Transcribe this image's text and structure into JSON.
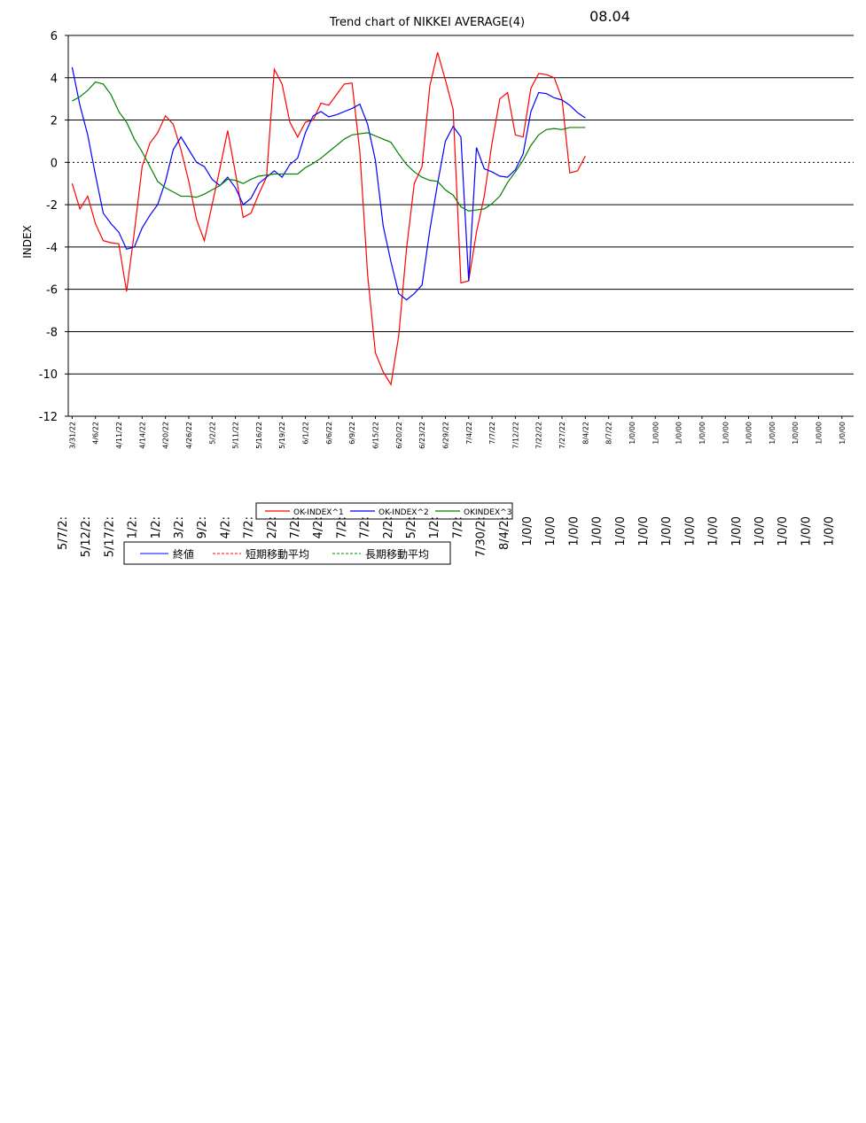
{
  "chart_data": {
    "type": "line",
    "title": "Trend chart of NIKKEI AVERAGE(4)",
    "annotation": "08.04",
    "y_label": "INDEX",
    "categories": [
      "3/31/22",
      null,
      null,
      "4/6/22",
      null,
      null,
      "4/11/22",
      null,
      null,
      "4/14/22",
      null,
      null,
      "4/20/22",
      null,
      null,
      "4/26/22",
      null,
      null,
      "5/2/22",
      null,
      null,
      "5/11/22",
      null,
      null,
      "5/16/22",
      null,
      null,
      "5/19/22",
      null,
      null,
      "6/1/22",
      null,
      null,
      "6/6/22",
      null,
      null,
      "6/9/22",
      null,
      null,
      "6/15/22",
      null,
      null,
      "6/20/22",
      null,
      null,
      "6/23/22",
      null,
      null,
      "6/29/22",
      null,
      null,
      "7/4/22",
      null,
      null,
      "7/7/22",
      null,
      null,
      "7/12/22",
      null,
      null,
      "7/22/22",
      null,
      null,
      "7/27/22",
      null,
      null,
      "8/4/22",
      null,
      null,
      "8/7/22",
      null,
      null,
      "1/0/00",
      null,
      null,
      "1/0/00",
      null,
      null,
      "1/0/00",
      null,
      null,
      "1/0/00",
      null,
      null,
      "1/0/00",
      null,
      null,
      "1/0/00",
      null,
      null,
      "1/0/00",
      null,
      null,
      "1/0/00",
      null,
      null,
      "1/0/00",
      null,
      null,
      "1/0/00",
      null
    ],
    "series": [
      {
        "name": "OK-INDEX^1",
        "color": "#ff0000",
        "values": [
          -1,
          -2.2,
          -1.6,
          -2.9,
          -3.7,
          -3.8,
          -3.85,
          -6.1,
          -3.3,
          -0.2,
          0.9,
          1.4,
          2.2,
          1.8,
          0.6,
          -0.9,
          -2.7,
          -3.7,
          -2,
          -0.3,
          1.5,
          -0.5,
          -2.6,
          -2.4,
          -1.5,
          -0.7,
          4.4,
          3.7,
          1.9,
          1.2,
          1.9,
          2,
          2.8,
          2.7,
          3.2,
          3.7,
          3.75,
          0.5,
          -5.3,
          -9,
          -9.9,
          -10.5,
          -8.2,
          -4.1,
          -1,
          -0.2,
          3.6,
          5.2,
          3.9,
          2.5,
          -5.7,
          -5.6,
          -3.3,
          -1.6,
          0.9,
          3,
          3.3,
          1.3,
          1.2,
          3.5,
          4.2,
          4.15,
          4,
          3,
          -0.5,
          -0.4,
          0.3,
          null,
          null,
          null,
          null,
          null,
          null,
          null,
          null,
          null,
          null,
          null,
          null,
          null,
          null,
          null,
          null,
          null,
          null,
          null,
          null,
          null,
          null,
          null,
          null,
          null,
          null,
          null,
          null,
          null,
          null,
          null,
          null,
          null,
          null
        ]
      },
      {
        "name": "OK-INDEX^2",
        "color": "#0000ff",
        "values": [
          4.5,
          2.7,
          1.3,
          -0.6,
          -2.4,
          -2.9,
          -3.3,
          -4.1,
          -4,
          -3.1,
          -2.5,
          -2,
          -0.9,
          0.6,
          1.2,
          0.6,
          0,
          -0.2,
          -0.8,
          -1.1,
          -0.7,
          -1.2,
          -2,
          -1.7,
          -1,
          -0.7,
          -0.4,
          -0.7,
          -0.1,
          0.2,
          1.4,
          2.2,
          2.4,
          2.15,
          2.25,
          2.4,
          2.55,
          2.75,
          1.8,
          0.1,
          -3,
          -4.7,
          -6.2,
          -6.5,
          -6.2,
          -5.8,
          -3.2,
          -1,
          1,
          1.7,
          1.2,
          -5.6,
          0.7,
          -0.3,
          -0.45,
          -0.65,
          -0.7,
          -0.35,
          0.4,
          2.4,
          3.3,
          3.25,
          3.05,
          2.95,
          2.7,
          2.35,
          2.1,
          null,
          null,
          null,
          null,
          null,
          null,
          null,
          null,
          null,
          null,
          null,
          null,
          null,
          null,
          null,
          null,
          null,
          null,
          null,
          null,
          null,
          null,
          null,
          null,
          null,
          null,
          null,
          null,
          null,
          null,
          null,
          null,
          null,
          null
        ]
      },
      {
        "name": "OKINDEX^3",
        "color": "#008000",
        "values": [
          2.9,
          3.1,
          3.4,
          3.8,
          3.7,
          3.2,
          2.4,
          1.9,
          1.1,
          0.5,
          -0.2,
          -0.9,
          -1.2,
          -1.4,
          -1.6,
          -1.6,
          -1.65,
          -1.5,
          -1.3,
          -1.1,
          -0.8,
          -0.85,
          -1,
          -0.8,
          -0.65,
          -0.6,
          -0.55,
          -0.55,
          -0.55,
          -0.55,
          -0.25,
          -0.05,
          0.2,
          0.5,
          0.8,
          1.1,
          1.3,
          1.35,
          1.4,
          1.25,
          1.1,
          0.95,
          0.4,
          -0.1,
          -0.45,
          -0.7,
          -0.85,
          -0.9,
          -1.3,
          -1.55,
          -2.1,
          -2.3,
          -2.25,
          -2.2,
          -1.95,
          -1.6,
          -0.95,
          -0.45,
          0.1,
          0.8,
          1.3,
          1.55,
          1.6,
          1.55,
          1.65,
          1.65,
          1.65,
          null,
          null,
          null,
          null,
          null,
          null,
          null,
          null,
          null,
          null,
          null,
          null,
          null,
          null,
          null,
          null,
          null,
          null,
          null,
          null,
          null,
          null,
          null,
          null,
          null,
          null,
          null,
          null,
          null,
          null,
          null,
          null,
          null,
          null
        ]
      }
    ],
    "ylim": [
      -12,
      6
    ],
    "yticks": [
      -12,
      -10,
      -8,
      -6,
      -4,
      -2,
      0,
      2,
      4,
      6
    ],
    "grid": true
  },
  "overlay": {
    "x_labels": [
      "5/7/2:",
      "5/12/2:",
      "5/17/2:",
      "1/2:",
      "1/2:",
      "3/2:",
      "9/2:",
      "4/2:",
      "7/2:",
      "2/2:",
      "7/2:",
      "4/2:",
      "7/2:",
      "7/2:",
      "2/2:",
      "5/2:",
      "1/2:",
      "7/2:",
      "7/30/2:",
      "8/4/2:",
      "1/0/0",
      "1/0/0",
      "1/0/0",
      "1/0/0",
      "1/0/0",
      "1/0/0",
      "1/0/0",
      "1/0/0",
      "1/0/0",
      "1/0/0",
      "1/0/0",
      "1/0/0",
      "1/0/0",
      "1/0/0"
    ],
    "legend": [
      {
        "name": "終値",
        "color": "#0000ff"
      },
      {
        "name": "短期移動平均",
        "color": "#ff0000",
        "dash": true
      },
      {
        "name": "長期移動平均",
        "color": "#008000",
        "dash": true
      }
    ]
  }
}
